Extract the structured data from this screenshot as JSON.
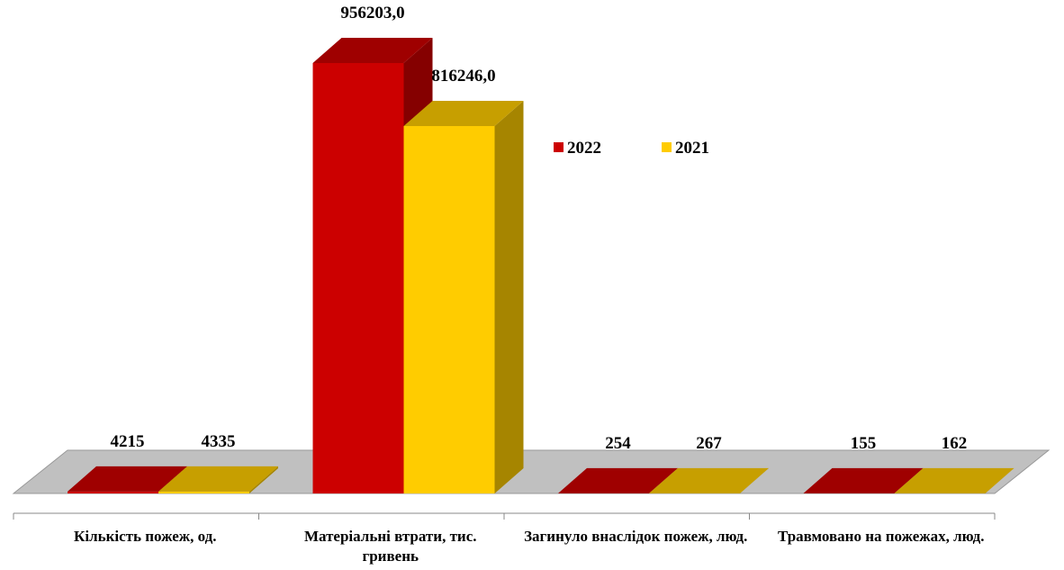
{
  "chart_data": {
    "type": "bar3d",
    "categories": [
      "Кількість пожеж, од.",
      "Матеріальні втрати, тис. гривень",
      "Загинуло внаслідок пожеж, люд.",
      "Травмовано на пожежах, люд."
    ],
    "series": [
      {
        "name": "2022",
        "color": "#cc0000",
        "values": [
          4215,
          956203,
          254,
          155
        ],
        "value_labels": [
          "4215",
          "956203,0",
          "254",
          "155"
        ]
      },
      {
        "name": "2021",
        "color": "#ffcc00",
        "values": [
          4335,
          816246,
          267,
          162
        ],
        "value_labels": [
          "4335",
          "816246,0",
          "267",
          "162"
        ]
      }
    ],
    "legend": "right"
  }
}
